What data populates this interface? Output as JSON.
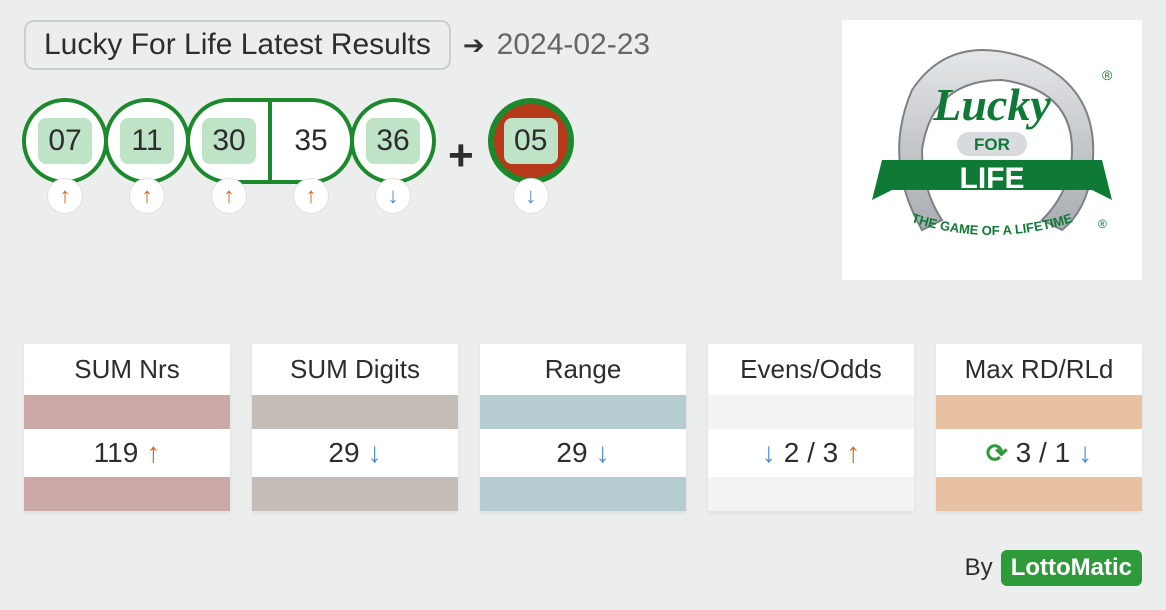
{
  "header": {
    "title": "Lucky For Life Latest Results",
    "date": "2024-02-23"
  },
  "balls": {
    "main": [
      {
        "n": "07",
        "highlight": true,
        "trend": "up",
        "shape": "round"
      },
      {
        "n": "11",
        "highlight": true,
        "trend": "up",
        "shape": "round"
      },
      {
        "n": "30",
        "highlight": true,
        "trend": "up",
        "shape": "pill-l"
      },
      {
        "n": "35",
        "highlight": false,
        "trend": "up",
        "shape": "pill-r"
      },
      {
        "n": "36",
        "highlight": true,
        "trend": "down",
        "shape": "round"
      }
    ],
    "plus": "+",
    "bonus": {
      "n": "05",
      "trend": "down"
    }
  },
  "logo": {
    "line1": "Lucky",
    "line2": "FOR",
    "line3": "LIFE",
    "tagline": "THE GAME OF A LIFETIME",
    "reg": "®",
    "green": "#0f7a35",
    "silver_light": "#e4e6e8",
    "silver_dark": "#a9adb1"
  },
  "stats": [
    {
      "label": "SUM Nrs",
      "value": "119",
      "pre_icon": null,
      "post_icon": "up",
      "bar": "#cba9a6",
      "foot": "#cba9a6"
    },
    {
      "label": "SUM Digits",
      "value": "29",
      "pre_icon": null,
      "post_icon": "down",
      "bar": "#c4bcb6",
      "foot": "#c4bcb6"
    },
    {
      "label": "Range",
      "value": "29",
      "pre_icon": null,
      "post_icon": "down",
      "bar": "#b5cdd0",
      "foot": "#b5cdd0"
    },
    {
      "label": "Evens/Odds",
      "value": "2 / 3",
      "pre_icon": "down",
      "post_icon": "up",
      "bar": "#f3f3f3",
      "foot": "#f3f3f3"
    },
    {
      "label": "Max RD/RLd",
      "value": "3 / 1",
      "pre_icon": "refresh",
      "post_icon": "down",
      "bar": "#e7c1a1",
      "foot": "#e7c1a1"
    }
  ],
  "byline": {
    "by": "By",
    "brand": "LottoMatic"
  }
}
